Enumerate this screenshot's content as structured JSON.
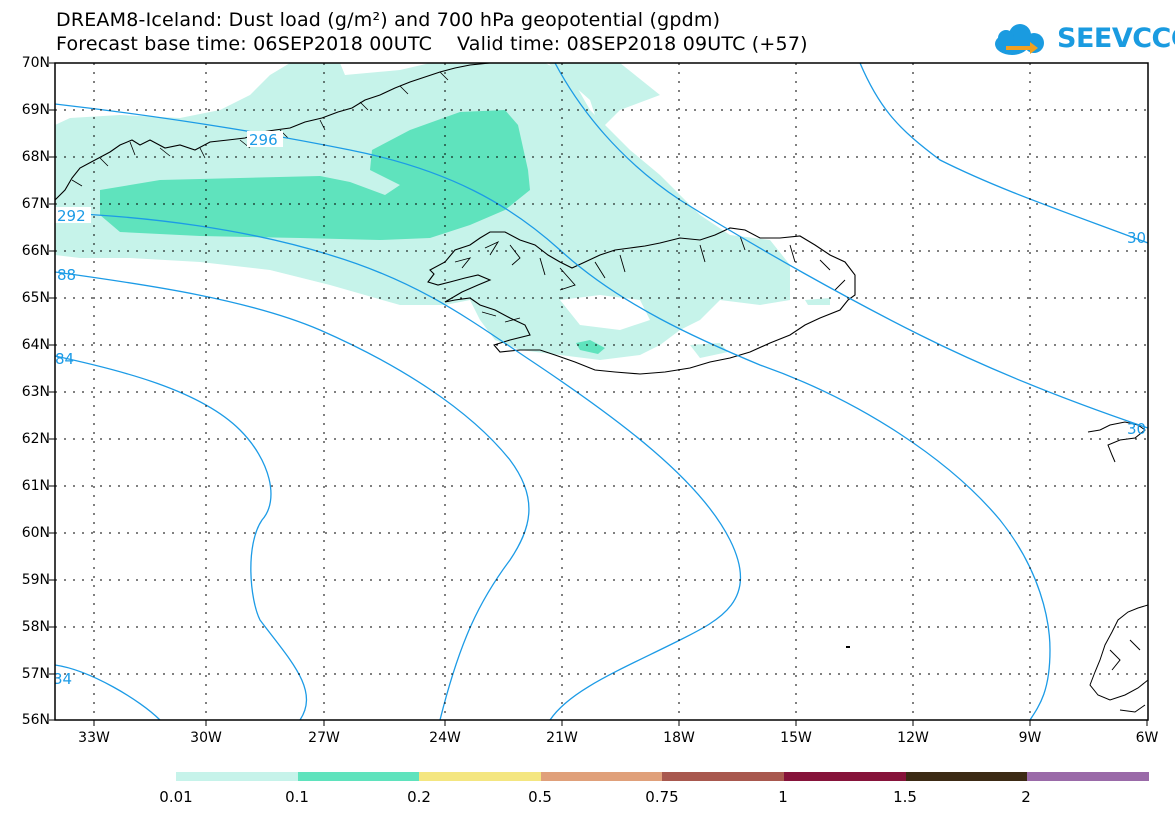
{
  "title": {
    "line1": "DREAM8-Iceland: Dust load (g/m²) and 700 hPa geopotential (gpdm)",
    "line2": "Forecast base time: 06SEP2018 00UTC    Valid time: 08SEP2018 09UTC (+57)"
  },
  "logo": {
    "text": "SEEVCCC",
    "icon": "cloud-arrow-icon",
    "color": "#1a9be0"
  },
  "axes": {
    "lat_labels": [
      "70N",
      "69N",
      "68N",
      "67N",
      "66N",
      "65N",
      "64N",
      "63N",
      "62N",
      "61N",
      "60N",
      "59N",
      "58N",
      "57N",
      "56N"
    ],
    "lon_labels": [
      "33W",
      "30W",
      "27W",
      "24W",
      "21W",
      "18W",
      "15W",
      "12W",
      "9W",
      "6W"
    ]
  },
  "contour_labels": [
    "296",
    "292",
    "88",
    "84",
    "34",
    "30",
    "30"
  ],
  "colorbar": {
    "colors": [
      "#c6f3ea",
      "#5fe3bd",
      "#f4e680",
      "#e0a07a",
      "#a8584e",
      "#86133a",
      "#3c2a14",
      "#9a6aa8"
    ],
    "labels": [
      "0.01",
      "0.1",
      "0.2",
      "0.5",
      "0.75",
      "1",
      "1.5",
      "2"
    ]
  },
  "colors": {
    "contour": "#1c9be6",
    "dust_low": "#c6f3ea",
    "dust_mid": "#5fe3bd"
  }
}
